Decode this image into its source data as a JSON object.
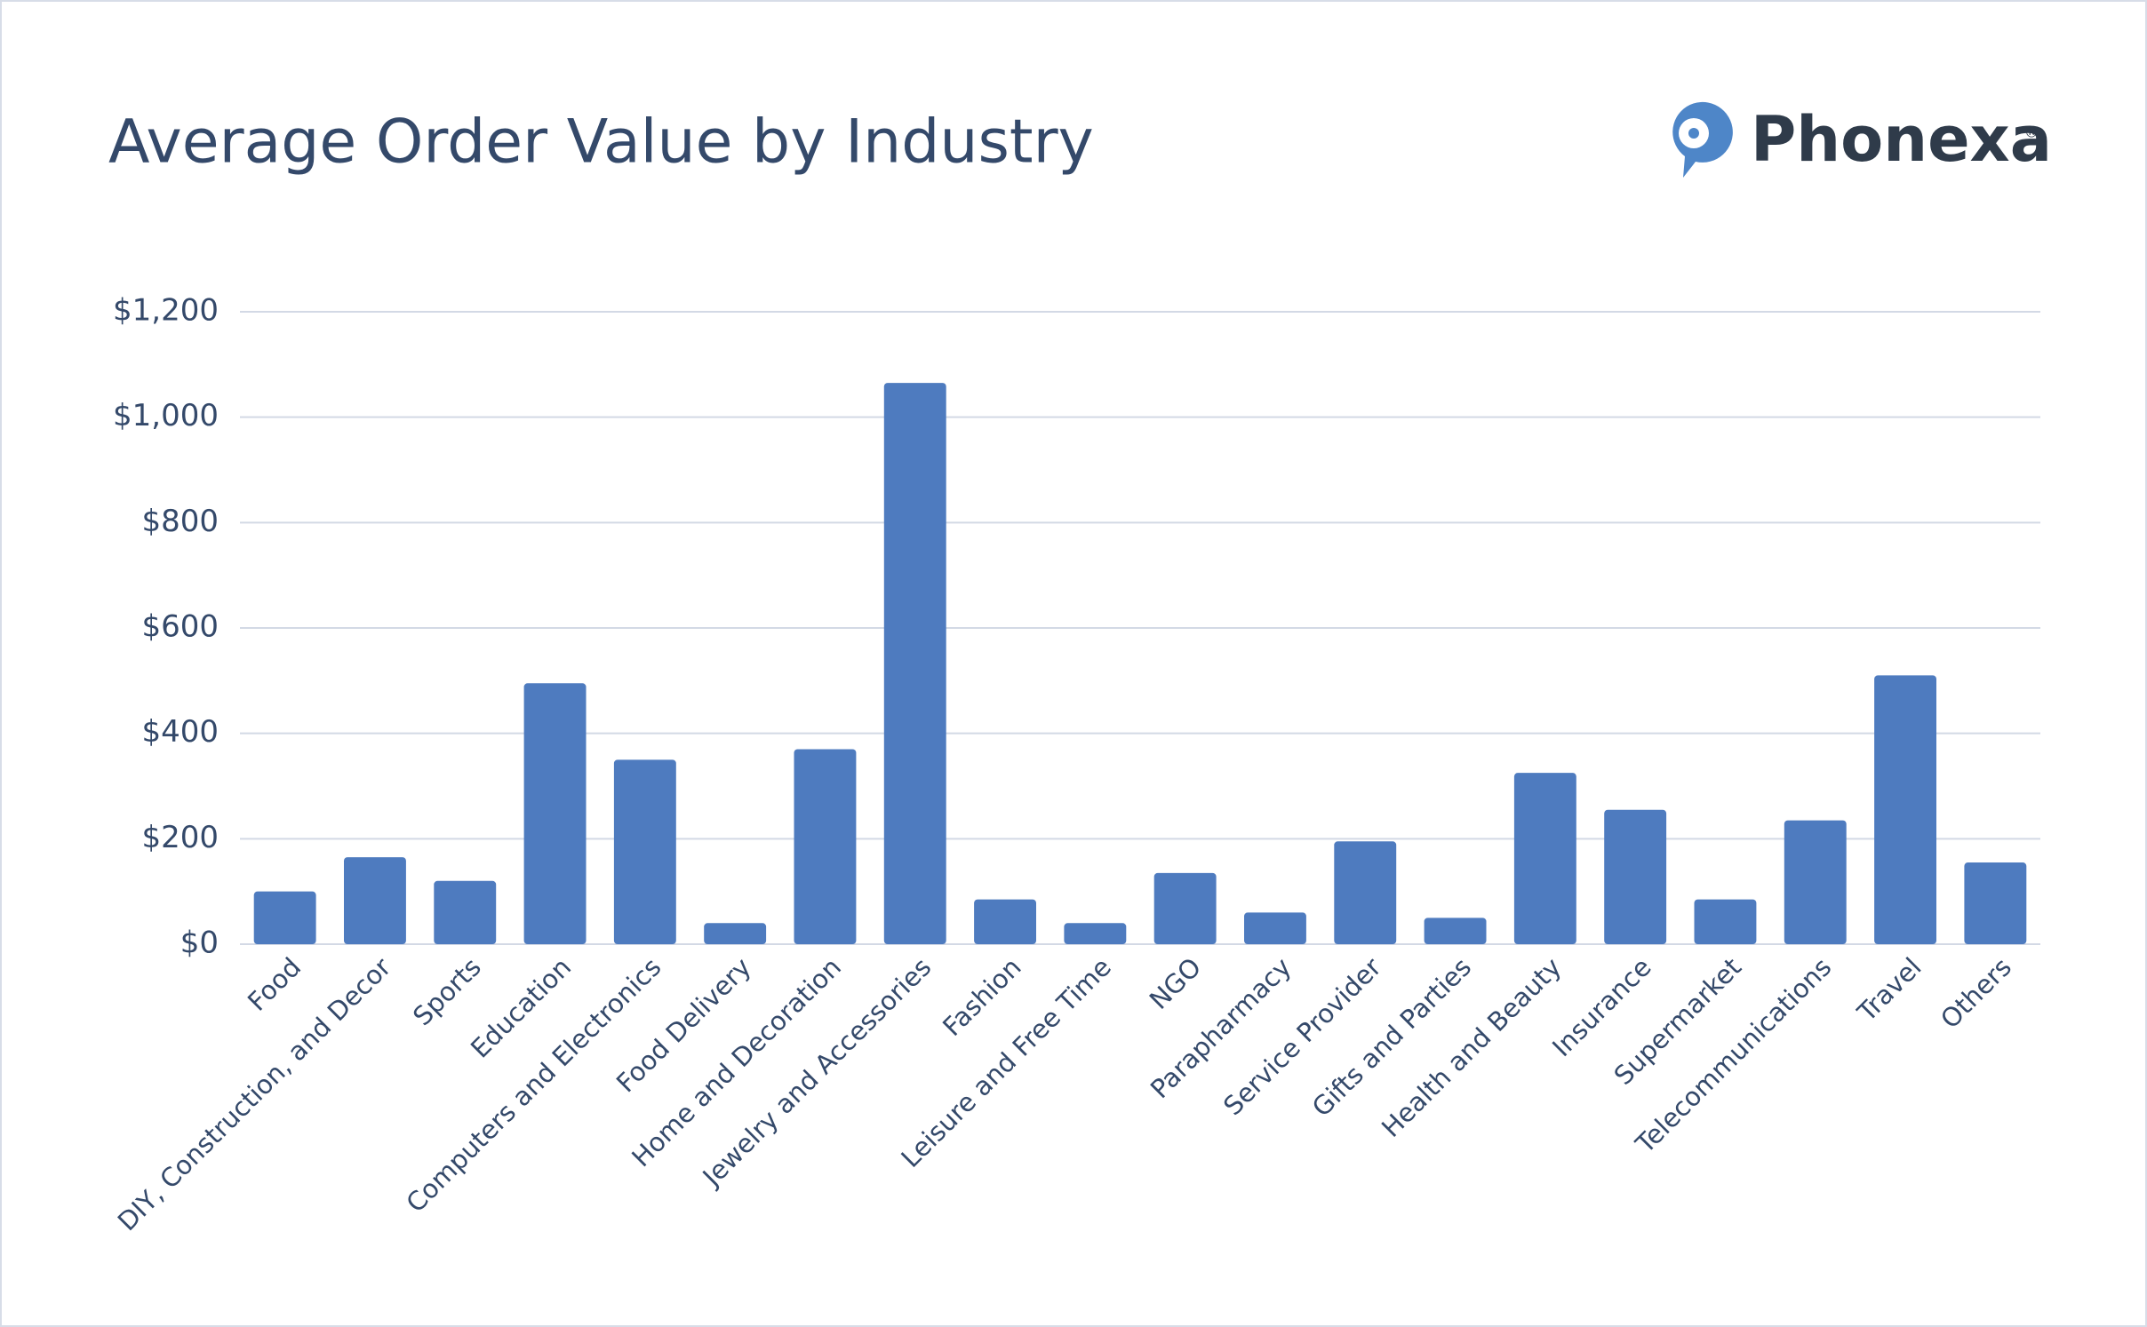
{
  "chart_data": {
    "type": "bar",
    "title": "Average Order Value by Industry",
    "brand": "Phonexa",
    "brand_mark": "®",
    "categories": [
      "Food",
      "DIY, Construction, and Decor",
      "Sports",
      "Education",
      "Computers and Electronics",
      "Food Delivery",
      "Home and Decoration",
      "Jewelry and Accessories",
      "Fashion",
      "Leisure and Free Time",
      "NGO",
      "Parapharmacy",
      "Service Provider",
      "Gifts and Parties",
      "Health and Beauty",
      "Insurance",
      "Supermarket",
      "Telecommunications",
      "Travel",
      "Others"
    ],
    "values": [
      100,
      165,
      120,
      495,
      350,
      40,
      370,
      1065,
      85,
      40,
      135,
      60,
      195,
      50,
      325,
      255,
      85,
      235,
      510,
      155
    ],
    "color": "#4e7bbf",
    "ylim": [
      0,
      1200
    ],
    "yticks": [
      {
        "value": 0,
        "label": "$0"
      },
      {
        "value": 200,
        "label": "$200"
      },
      {
        "value": 400,
        "label": "$400"
      },
      {
        "value": 600,
        "label": "$600"
      },
      {
        "value": 800,
        "label": "$800"
      },
      {
        "value": 1000,
        "label": "$1,000"
      },
      {
        "value": 1200,
        "label": "$1,200"
      }
    ],
    "grid": true
  }
}
